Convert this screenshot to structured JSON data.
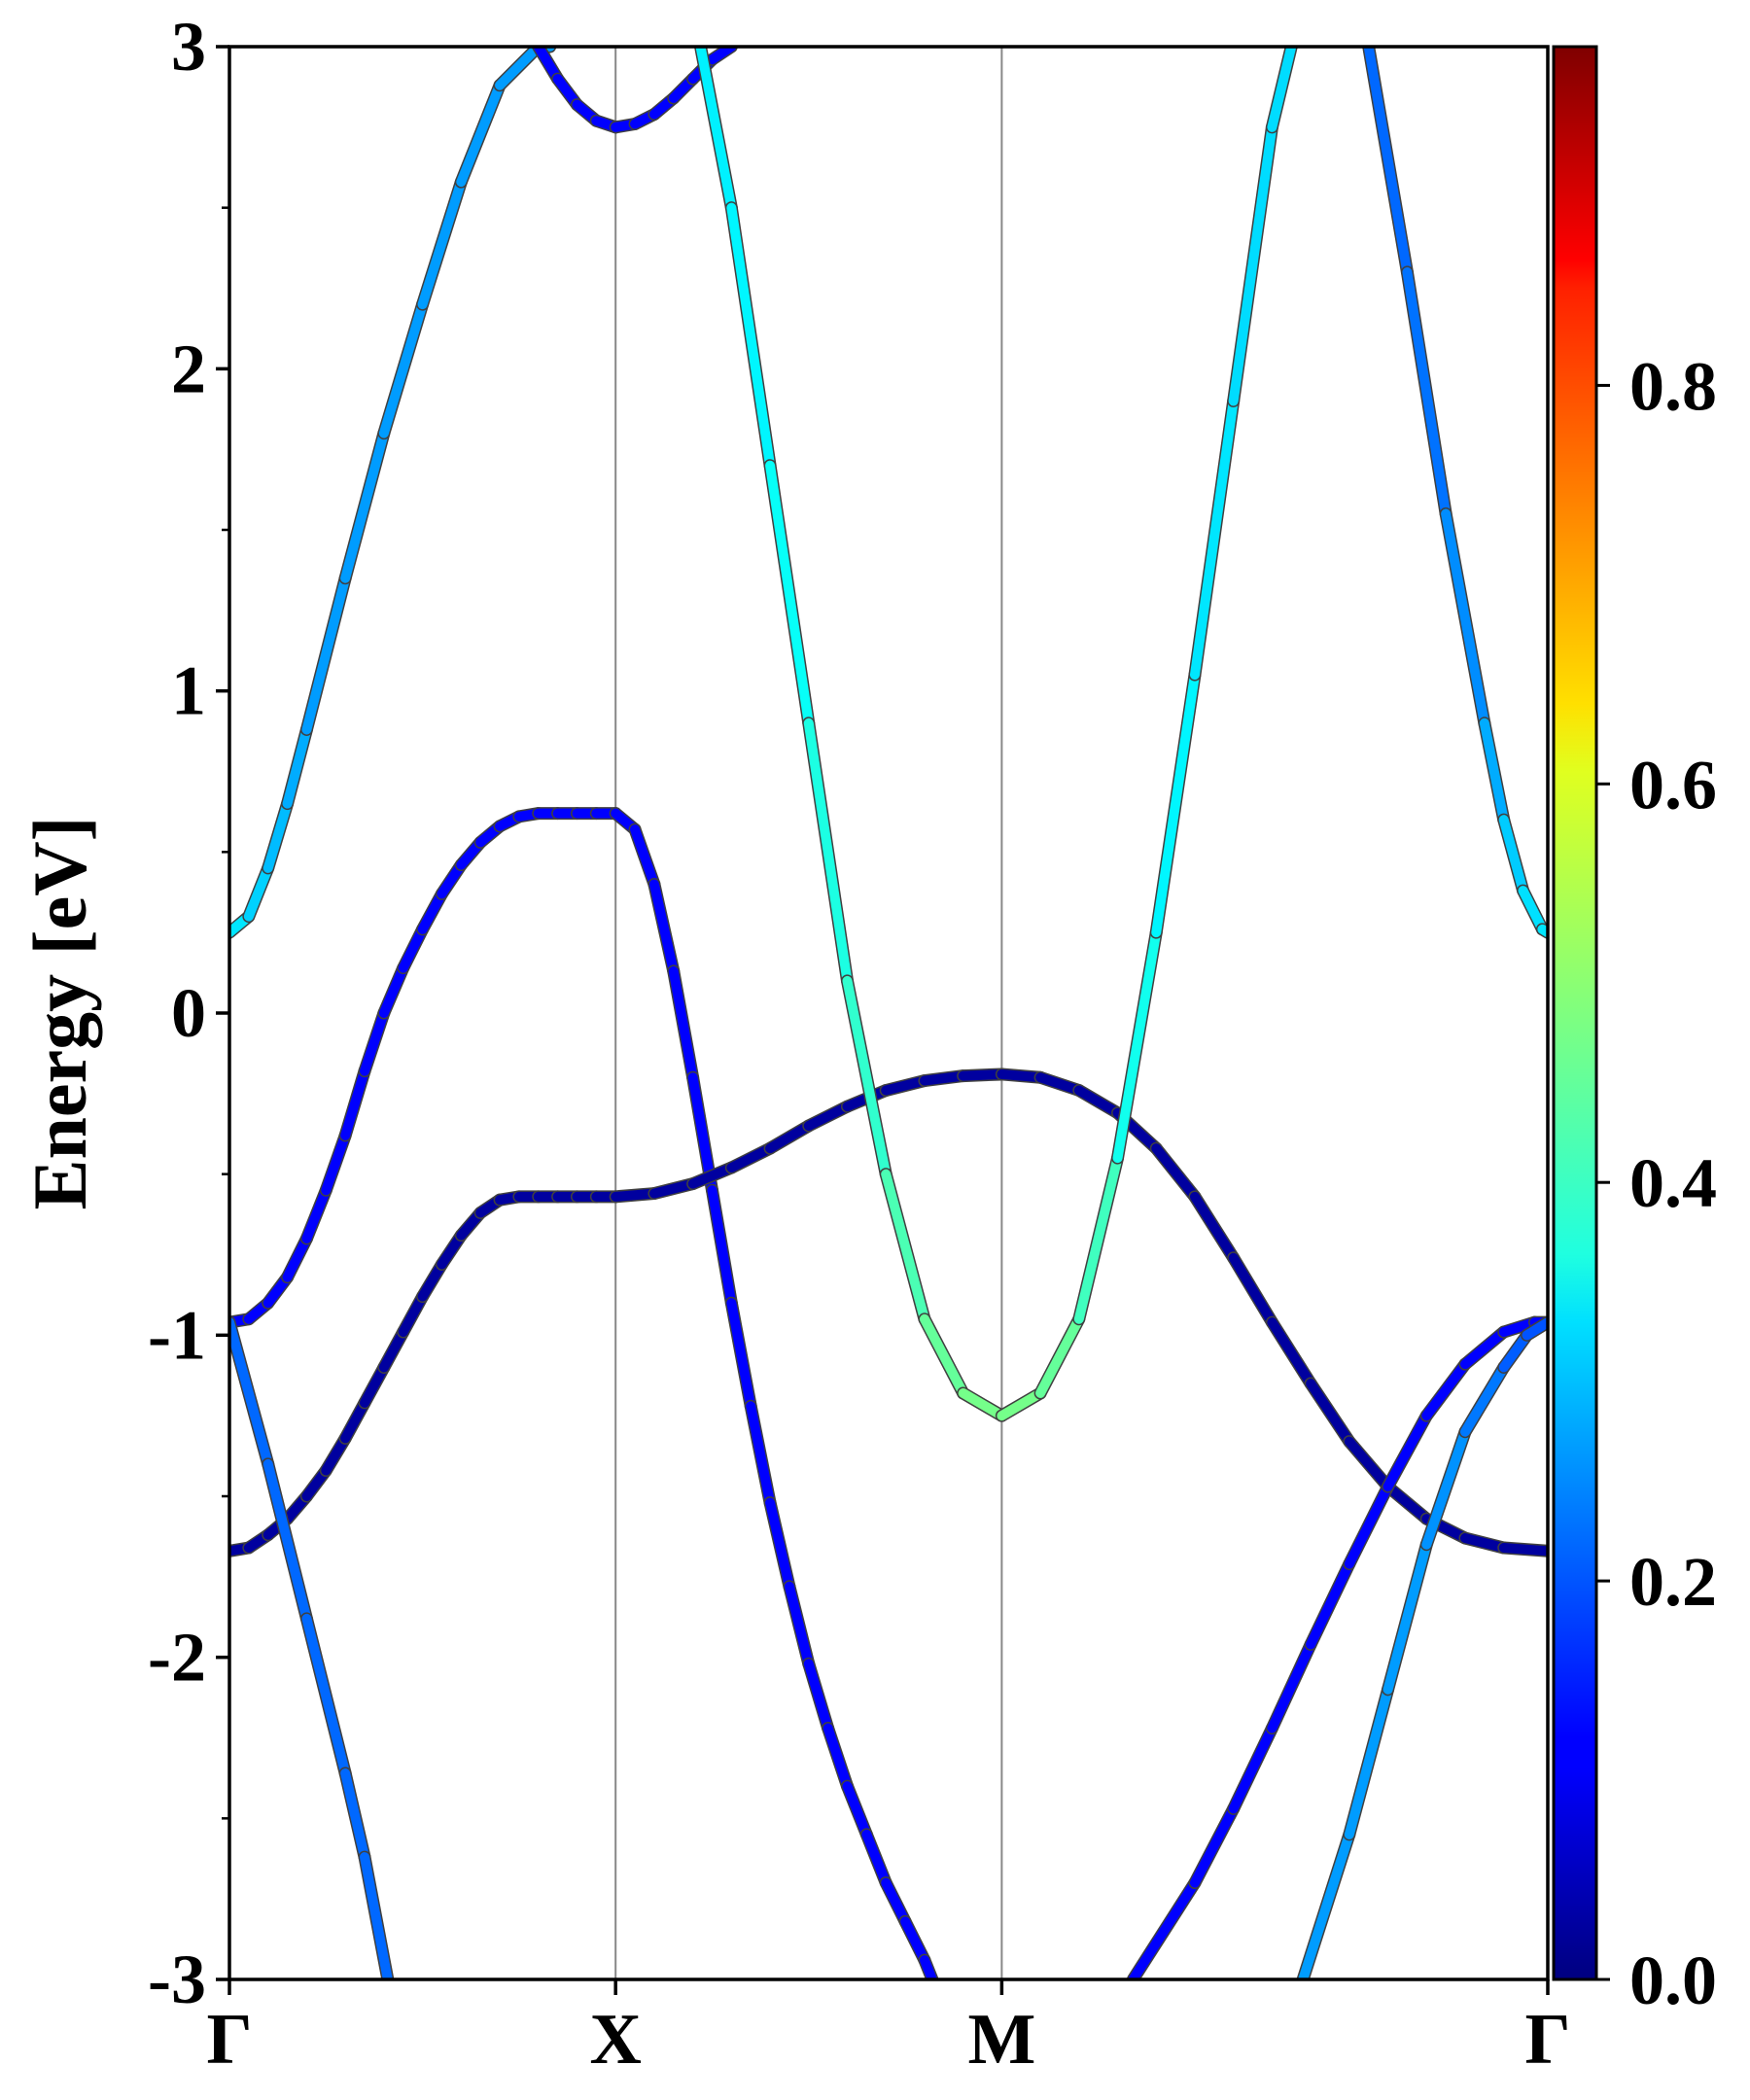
{
  "chart_data": {
    "type": "line",
    "title": "",
    "ylabel": "Energy [eV]",
    "xlabel": "",
    "ylim": [
      -3,
      3
    ],
    "yticks": [
      "-3",
      "-2",
      "-1",
      "0",
      "1",
      "2",
      "3"
    ],
    "yminor_ticks": [
      -2.5,
      -1.5,
      -0.5,
      0.5,
      1.5,
      2.5
    ],
    "kpoints": [
      {
        "label": "Γ",
        "k": 0.0
      },
      {
        "label": "X",
        "k": 1.0
      },
      {
        "label": "M",
        "k": 2.0
      },
      {
        "label": "Γ",
        "k": 3.414
      }
    ],
    "colorbar": {
      "colormap": "jet",
      "range": [
        0.0,
        0.97
      ],
      "tick_labels": [
        "0.0",
        "0.2",
        "0.4",
        "0.6",
        "0.8"
      ]
    },
    "series": [
      {
        "x": [
          0.0,
          0.05,
          0.1,
          0.15,
          0.2,
          0.25,
          0.3,
          0.35,
          0.4,
          0.45,
          0.5,
          0.55,
          0.6,
          0.65,
          0.7,
          0.75,
          0.8,
          0.85,
          0.9,
          0.95,
          1.0
        ],
        "y": [
          -0.96,
          -0.95,
          -0.9,
          -0.82,
          -0.7,
          -0.55,
          -0.38,
          -0.18,
          0.0,
          0.14,
          0.26,
          0.37,
          0.46,
          0.53,
          0.58,
          0.61,
          0.62,
          0.62,
          0.62,
          0.62,
          0.62
        ],
        "weights": [
          0.12,
          0.12,
          0.12,
          0.12,
          0.12,
          0.12,
          0.12,
          0.12,
          0.12,
          0.12,
          0.12,
          0.12,
          0.12,
          0.12,
          0.12,
          0.12,
          0.12,
          0.12,
          0.12,
          0.12,
          0.12
        ]
      },
      {
        "x": [
          1.0,
          1.05,
          1.1,
          1.15,
          1.2,
          1.25,
          1.3,
          1.35,
          1.4,
          1.45,
          1.5,
          1.55,
          1.6,
          1.65,
          1.7,
          1.75,
          1.8,
          1.82
        ],
        "y": [
          0.62,
          0.57,
          0.4,
          0.13,
          -0.2,
          -0.55,
          -0.9,
          -1.22,
          -1.52,
          -1.78,
          -2.02,
          -2.22,
          -2.4,
          -2.55,
          -2.7,
          -2.82,
          -2.94,
          -3.0
        ],
        "weights": [
          0.12,
          0.12,
          0.12,
          0.12,
          0.12,
          0.12,
          0.12,
          0.12,
          0.12,
          0.12,
          0.12,
          0.12,
          0.12,
          0.12,
          0.12,
          0.12,
          0.12,
          0.12
        ]
      },
      {
        "x": [
          0.0,
          0.05,
          0.1,
          0.15,
          0.2,
          0.25,
          0.3,
          0.35,
          0.4,
          0.45,
          0.5,
          0.55,
          0.6,
          0.65,
          0.7,
          0.75,
          0.8,
          0.85,
          0.9,
          0.95,
          1.0
        ],
        "y": [
          -1.67,
          -1.66,
          -1.62,
          -1.57,
          -1.5,
          -1.42,
          -1.32,
          -1.21,
          -1.1,
          -0.99,
          -0.88,
          -0.78,
          -0.69,
          -0.62,
          -0.58,
          -0.57,
          -0.57,
          -0.57,
          -0.57,
          -0.57,
          -0.57
        ],
        "weights": [
          0.03,
          0.03,
          0.03,
          0.03,
          0.03,
          0.03,
          0.03,
          0.03,
          0.03,
          0.03,
          0.03,
          0.03,
          0.03,
          0.03,
          0.03,
          0.03,
          0.03,
          0.03,
          0.03,
          0.03,
          0.03
        ]
      },
      {
        "x": [
          1.0,
          1.1,
          1.2,
          1.3,
          1.4,
          1.5,
          1.6,
          1.7,
          1.8,
          1.9,
          2.0
        ],
        "y": [
          -0.57,
          -0.56,
          -0.53,
          -0.48,
          -0.42,
          -0.35,
          -0.29,
          -0.24,
          -0.21,
          -0.195,
          -0.19
        ],
        "weights": [
          0.03,
          0.03,
          0.03,
          0.03,
          0.03,
          0.03,
          0.03,
          0.03,
          0.03,
          0.03,
          0.03
        ]
      },
      {
        "x": [
          2.0,
          2.1,
          2.2,
          2.3,
          2.4,
          2.5,
          2.6,
          2.7,
          2.8,
          2.9,
          3.0,
          3.1,
          3.2,
          3.3,
          3.414
        ],
        "y": [
          -0.19,
          -0.2,
          -0.24,
          -0.31,
          -0.42,
          -0.57,
          -0.76,
          -0.96,
          -1.15,
          -1.33,
          -1.47,
          -1.57,
          -1.63,
          -1.66,
          -1.67
        ],
        "weights": [
          0.03,
          0.03,
          0.03,
          0.03,
          0.03,
          0.03,
          0.03,
          0.03,
          0.03,
          0.03,
          0.03,
          0.03,
          0.03,
          0.03,
          0.03
        ]
      },
      {
        "x": [
          0.0,
          0.1,
          0.2,
          0.3,
          0.35,
          0.41
        ],
        "y": [
          -0.96,
          -1.4,
          -1.88,
          -2.36,
          -2.62,
          -3.0
        ],
        "weights": [
          0.22,
          0.22,
          0.22,
          0.22,
          0.22,
          0.22
        ]
      },
      {
        "x": [
          0.0,
          0.05,
          0.1,
          0.15,
          0.2,
          0.3,
          0.4,
          0.5,
          0.6,
          0.7,
          0.8,
          0.83
        ],
        "y": [
          0.25,
          0.3,
          0.45,
          0.65,
          0.88,
          1.35,
          1.8,
          2.2,
          2.58,
          2.88,
          3.0,
          3.0
        ],
        "weights": [
          0.34,
          0.34,
          0.3,
          0.3,
          0.27,
          0.27,
          0.27,
          0.27,
          0.27,
          0.27,
          0.27,
          0.27
        ]
      },
      {
        "x": [
          0.8,
          0.85,
          0.9,
          0.95,
          1.0,
          1.05,
          1.1,
          1.15,
          1.2,
          1.25,
          1.3
        ],
        "y": [
          3.0,
          2.9,
          2.82,
          2.77,
          2.75,
          2.76,
          2.79,
          2.84,
          2.9,
          2.96,
          3.0
        ],
        "weights": [
          0.12,
          0.12,
          0.12,
          0.12,
          0.12,
          0.12,
          0.12,
          0.12,
          0.12,
          0.12,
          0.12
        ]
      },
      {
        "x": [
          1.22,
          1.3,
          1.4,
          1.5,
          1.6,
          1.7,
          1.8,
          1.9,
          2.0,
          2.1,
          2.2,
          2.3,
          2.4,
          2.5,
          2.6,
          2.7,
          2.75
        ],
        "y": [
          3.0,
          2.5,
          1.7,
          0.9,
          0.1,
          -0.5,
          -0.95,
          -1.18,
          -1.25,
          -1.18,
          -0.95,
          -0.45,
          0.25,
          1.05,
          1.9,
          2.75,
          3.0
        ],
        "weights": [
          0.35,
          0.35,
          0.36,
          0.38,
          0.4,
          0.42,
          0.45,
          0.47,
          0.48,
          0.47,
          0.45,
          0.4,
          0.36,
          0.35,
          0.33,
          0.33,
          0.33
        ]
      },
      {
        "x": [
          2.95,
          3.05,
          3.15,
          3.25,
          3.3,
          3.35,
          3.4,
          3.414
        ],
        "y": [
          3.0,
          2.3,
          1.55,
          0.9,
          0.6,
          0.38,
          0.26,
          0.25
        ],
        "weights": [
          0.22,
          0.22,
          0.24,
          0.27,
          0.3,
          0.33,
          0.34,
          0.34
        ]
      },
      {
        "x": [
          2.34,
          2.5,
          2.6,
          2.7,
          2.8,
          2.9,
          3.0,
          3.1,
          3.2,
          3.3,
          3.38,
          3.414
        ],
        "y": [
          -3.0,
          -2.7,
          -2.47,
          -2.22,
          -1.96,
          -1.71,
          -1.47,
          -1.25,
          -1.09,
          -0.99,
          -0.96,
          -0.96
        ],
        "weights": [
          0.12,
          0.12,
          0.12,
          0.12,
          0.12,
          0.12,
          0.12,
          0.12,
          0.12,
          0.12,
          0.12,
          0.12
        ]
      },
      {
        "x": [
          2.78,
          2.9,
          3.0,
          3.1,
          3.2,
          3.3,
          3.36,
          3.414
        ],
        "y": [
          -3.0,
          -2.55,
          -2.1,
          -1.65,
          -1.3,
          -1.1,
          -1.0,
          -0.96
        ],
        "weights": [
          0.27,
          0.27,
          0.27,
          0.27,
          0.25,
          0.22,
          0.2,
          0.2
        ]
      }
    ]
  }
}
